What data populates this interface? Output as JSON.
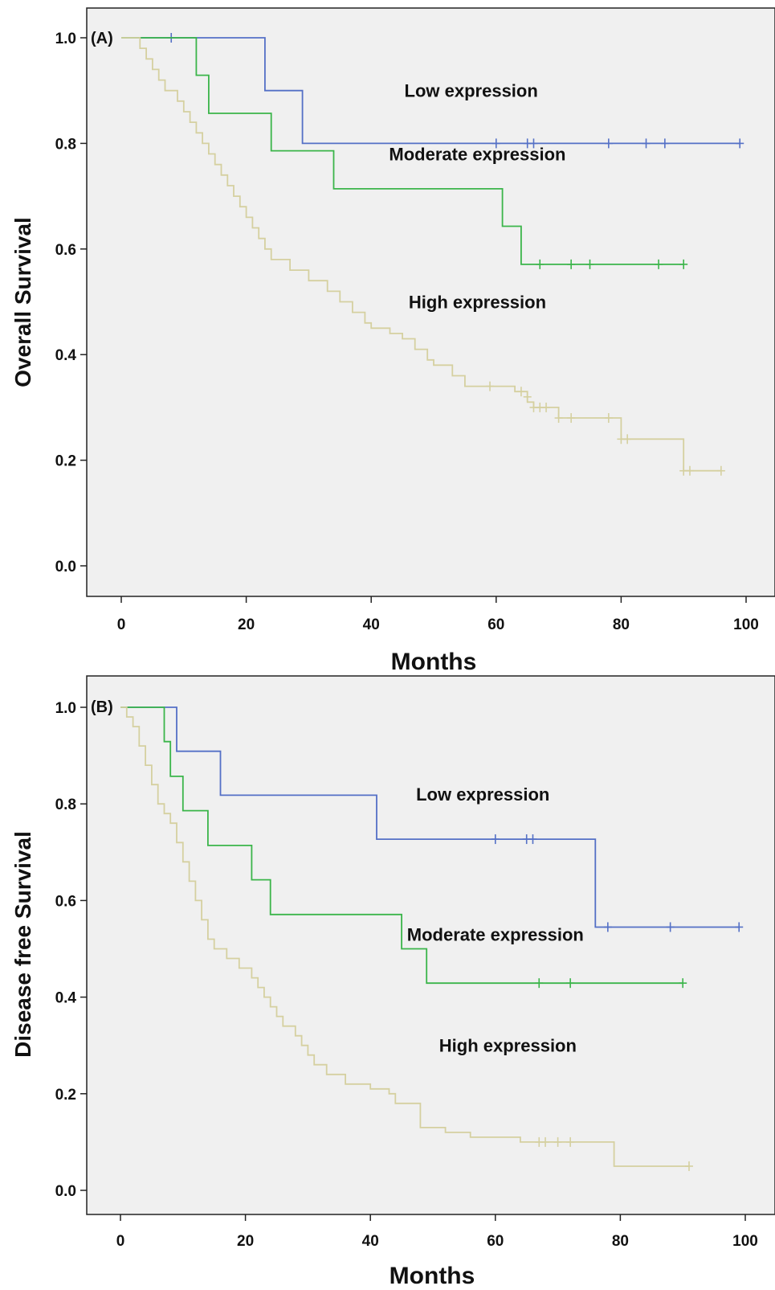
{
  "chart_data": [
    {
      "type": "line",
      "subtype": "kaplan-meier",
      "panel_label": "(A)",
      "xlabel": "Months",
      "ylabel": "Overall Survival",
      "xlim": [
        -5,
        103
      ],
      "ylim": [
        -0.05,
        1.05
      ],
      "xticks": [
        0,
        20,
        40,
        60,
        80,
        100
      ],
      "yticks": [
        "0.0",
        "0.2",
        "0.4",
        "0.6",
        "0.8",
        "1.0"
      ],
      "grid": false,
      "legend": "none",
      "background": "#f0f0f0",
      "annotations": [
        {
          "text": "Low expression",
          "x": 56,
          "y": 0.9
        },
        {
          "text": "Moderate expression",
          "x": 57,
          "y": 0.78
        },
        {
          "text": "High expression",
          "x": 57,
          "y": 0.5
        }
      ],
      "series": [
        {
          "color": "#5470c6",
          "steps": [
            [
              0,
              1.0
            ],
            [
              23,
              1.0
            ],
            [
              23,
              0.9
            ],
            [
              29,
              0.9
            ],
            [
              29,
              0.8
            ],
            [
              99,
              0.8
            ]
          ],
          "censored": [
            [
              8,
              1.0
            ],
            [
              60,
              0.8
            ],
            [
              65,
              0.8
            ],
            [
              66,
              0.8
            ],
            [
              78,
              0.8
            ],
            [
              84,
              0.8
            ],
            [
              87,
              0.8
            ],
            [
              99,
              0.8
            ]
          ]
        },
        {
          "color": "#3bb54a",
          "steps": [
            [
              0,
              1.0
            ],
            [
              12,
              1.0
            ],
            [
              12,
              0.929
            ],
            [
              14,
              0.929
            ],
            [
              14,
              0.857
            ],
            [
              24,
              0.857
            ],
            [
              24,
              0.786
            ],
            [
              34,
              0.786
            ],
            [
              34,
              0.714
            ],
            [
              61,
              0.714
            ],
            [
              61,
              0.643
            ],
            [
              64,
              0.643
            ],
            [
              64,
              0.571
            ],
            [
              90,
              0.571
            ]
          ],
          "censored": [
            [
              67,
              0.571
            ],
            [
              72,
              0.571
            ],
            [
              75,
              0.571
            ],
            [
              86,
              0.571
            ],
            [
              90,
              0.571
            ]
          ]
        },
        {
          "color": "#d5d0a0",
          "steps": [
            [
              0,
              1.0
            ],
            [
              3,
              1.0
            ],
            [
              3,
              0.98
            ],
            [
              4,
              0.98
            ],
            [
              4,
              0.96
            ],
            [
              5,
              0.96
            ],
            [
              5,
              0.94
            ],
            [
              6,
              0.94
            ],
            [
              6,
              0.92
            ],
            [
              7,
              0.92
            ],
            [
              7,
              0.9
            ],
            [
              9,
              0.9
            ],
            [
              9,
              0.88
            ],
            [
              10,
              0.88
            ],
            [
              10,
              0.86
            ],
            [
              11,
              0.86
            ],
            [
              11,
              0.84
            ],
            [
              12,
              0.84
            ],
            [
              12,
              0.82
            ],
            [
              13,
              0.82
            ],
            [
              13,
              0.8
            ],
            [
              14,
              0.8
            ],
            [
              14,
              0.78
            ],
            [
              15,
              0.78
            ],
            [
              15,
              0.76
            ],
            [
              16,
              0.76
            ],
            [
              16,
              0.74
            ],
            [
              17,
              0.74
            ],
            [
              17,
              0.72
            ],
            [
              18,
              0.72
            ],
            [
              18,
              0.7
            ],
            [
              19,
              0.7
            ],
            [
              19,
              0.68
            ],
            [
              20,
              0.68
            ],
            [
              20,
              0.66
            ],
            [
              21,
              0.66
            ],
            [
              21,
              0.64
            ],
            [
              22,
              0.64
            ],
            [
              22,
              0.62
            ],
            [
              23,
              0.62
            ],
            [
              23,
              0.6
            ],
            [
              24,
              0.6
            ],
            [
              24,
              0.58
            ],
            [
              27,
              0.58
            ],
            [
              27,
              0.56
            ],
            [
              30,
              0.56
            ],
            [
              30,
              0.54
            ],
            [
              33,
              0.54
            ],
            [
              33,
              0.52
            ],
            [
              35,
              0.52
            ],
            [
              35,
              0.5
            ],
            [
              37,
              0.5
            ],
            [
              37,
              0.48
            ],
            [
              39,
              0.48
            ],
            [
              39,
              0.46
            ],
            [
              40,
              0.46
            ],
            [
              40,
              0.45
            ],
            [
              43,
              0.45
            ],
            [
              43,
              0.44
            ],
            [
              45,
              0.44
            ],
            [
              45,
              0.43
            ],
            [
              47,
              0.43
            ],
            [
              47,
              0.41
            ],
            [
              49,
              0.41
            ],
            [
              49,
              0.39
            ],
            [
              50,
              0.39
            ],
            [
              50,
              0.38
            ],
            [
              53,
              0.38
            ],
            [
              53,
              0.36
            ],
            [
              55,
              0.36
            ],
            [
              55,
              0.34
            ],
            [
              63,
              0.34
            ],
            [
              63,
              0.33
            ],
            [
              65,
              0.33
            ],
            [
              65,
              0.31
            ],
            [
              66,
              0.31
            ],
            [
              66,
              0.3
            ],
            [
              70,
              0.3
            ],
            [
              70,
              0.28
            ],
            [
              80,
              0.28
            ],
            [
              80,
              0.24
            ],
            [
              90,
              0.24
            ],
            [
              90,
              0.18
            ],
            [
              96,
              0.18
            ]
          ],
          "censored": [
            [
              59,
              0.34
            ],
            [
              64,
              0.33
            ],
            [
              65,
              0.32
            ],
            [
              66,
              0.3
            ],
            [
              67,
              0.3
            ],
            [
              68,
              0.3
            ],
            [
              70,
              0.28
            ],
            [
              72,
              0.28
            ],
            [
              78,
              0.28
            ],
            [
              80,
              0.24
            ],
            [
              81,
              0.24
            ],
            [
              90,
              0.18
            ],
            [
              91,
              0.18
            ],
            [
              96,
              0.18
            ]
          ]
        }
      ]
    },
    {
      "type": "line",
      "subtype": "kaplan-meier",
      "panel_label": "(B)",
      "xlabel": "Months",
      "ylabel": "Disease free Survival",
      "xlim": [
        -5,
        103
      ],
      "ylim": [
        -0.05,
        1.05
      ],
      "xticks": [
        0,
        20,
        40,
        60,
        80,
        100
      ],
      "yticks": [
        "0.0",
        "0.2",
        "0.4",
        "0.6",
        "0.8",
        "1.0"
      ],
      "grid": false,
      "legend": "none",
      "background": "#f0f0f0",
      "annotations": [
        {
          "text": "Low expression",
          "x": 58,
          "y": 0.82
        },
        {
          "text": "Moderate expression",
          "x": 60,
          "y": 0.53
        },
        {
          "text": "High expression",
          "x": 62,
          "y": 0.3
        }
      ],
      "series": [
        {
          "color": "#5470c6",
          "steps": [
            [
              0,
              1.0
            ],
            [
              9,
              1.0
            ],
            [
              9,
              0.909
            ],
            [
              16,
              0.909
            ],
            [
              16,
              0.818
            ],
            [
              41,
              0.818
            ],
            [
              41,
              0.727
            ],
            [
              76,
              0.727
            ],
            [
              76,
              0.545
            ],
            [
              99,
              0.545
            ]
          ],
          "censored": [
            [
              60,
              0.727
            ],
            [
              65,
              0.727
            ],
            [
              66,
              0.727
            ],
            [
              78,
              0.545
            ],
            [
              88,
              0.545
            ],
            [
              99,
              0.545
            ]
          ]
        },
        {
          "color": "#3bb54a",
          "steps": [
            [
              0,
              1.0
            ],
            [
              7,
              1.0
            ],
            [
              7,
              0.929
            ],
            [
              8,
              0.929
            ],
            [
              8,
              0.857
            ],
            [
              10,
              0.857
            ],
            [
              10,
              0.786
            ],
            [
              14,
              0.786
            ],
            [
              14,
              0.714
            ],
            [
              21,
              0.714
            ],
            [
              21,
              0.643
            ],
            [
              24,
              0.643
            ],
            [
              24,
              0.571
            ],
            [
              45,
              0.571
            ],
            [
              45,
              0.5
            ],
            [
              49,
              0.5
            ],
            [
              49,
              0.429
            ],
            [
              90,
              0.429
            ]
          ],
          "censored": [
            [
              67,
              0.429
            ],
            [
              72,
              0.429
            ],
            [
              90,
              0.429
            ]
          ]
        },
        {
          "color": "#d5d0a0",
          "steps": [
            [
              0,
              1.0
            ],
            [
              1,
              1.0
            ],
            [
              1,
              0.98
            ],
            [
              2,
              0.98
            ],
            [
              2,
              0.96
            ],
            [
              3,
              0.96
            ],
            [
              3,
              0.92
            ],
            [
              4,
              0.92
            ],
            [
              4,
              0.88
            ],
            [
              5,
              0.88
            ],
            [
              5,
              0.84
            ],
            [
              6,
              0.84
            ],
            [
              6,
              0.8
            ],
            [
              7,
              0.8
            ],
            [
              7,
              0.78
            ],
            [
              8,
              0.78
            ],
            [
              8,
              0.76
            ],
            [
              9,
              0.76
            ],
            [
              9,
              0.72
            ],
            [
              10,
              0.72
            ],
            [
              10,
              0.68
            ],
            [
              11,
              0.68
            ],
            [
              11,
              0.64
            ],
            [
              12,
              0.64
            ],
            [
              12,
              0.6
            ],
            [
              13,
              0.6
            ],
            [
              13,
              0.56
            ],
            [
              14,
              0.56
            ],
            [
              14,
              0.52
            ],
            [
              15,
              0.52
            ],
            [
              15,
              0.5
            ],
            [
              17,
              0.5
            ],
            [
              17,
              0.48
            ],
            [
              19,
              0.48
            ],
            [
              19,
              0.46
            ],
            [
              21,
              0.46
            ],
            [
              21,
              0.44
            ],
            [
              22,
              0.44
            ],
            [
              22,
              0.42
            ],
            [
              23,
              0.42
            ],
            [
              23,
              0.4
            ],
            [
              24,
              0.4
            ],
            [
              24,
              0.38
            ],
            [
              25,
              0.38
            ],
            [
              25,
              0.36
            ],
            [
              26,
              0.36
            ],
            [
              26,
              0.34
            ],
            [
              28,
              0.34
            ],
            [
              28,
              0.32
            ],
            [
              29,
              0.32
            ],
            [
              29,
              0.3
            ],
            [
              30,
              0.3
            ],
            [
              30,
              0.28
            ],
            [
              31,
              0.28
            ],
            [
              31,
              0.26
            ],
            [
              33,
              0.26
            ],
            [
              33,
              0.24
            ],
            [
              36,
              0.24
            ],
            [
              36,
              0.22
            ],
            [
              40,
              0.22
            ],
            [
              40,
              0.21
            ],
            [
              43,
              0.21
            ],
            [
              43,
              0.2
            ],
            [
              44,
              0.2
            ],
            [
              44,
              0.18
            ],
            [
              48,
              0.18
            ],
            [
              48,
              0.13
            ],
            [
              52,
              0.13
            ],
            [
              52,
              0.12
            ],
            [
              56,
              0.12
            ],
            [
              56,
              0.11
            ],
            [
              64,
              0.11
            ],
            [
              64,
              0.1
            ],
            [
              79,
              0.1
            ],
            [
              79,
              0.05
            ],
            [
              91,
              0.05
            ]
          ],
          "censored": [
            [
              67,
              0.1
            ],
            [
              68,
              0.1
            ],
            [
              70,
              0.1
            ],
            [
              72,
              0.1
            ],
            [
              91,
              0.05
            ]
          ]
        }
      ]
    }
  ]
}
